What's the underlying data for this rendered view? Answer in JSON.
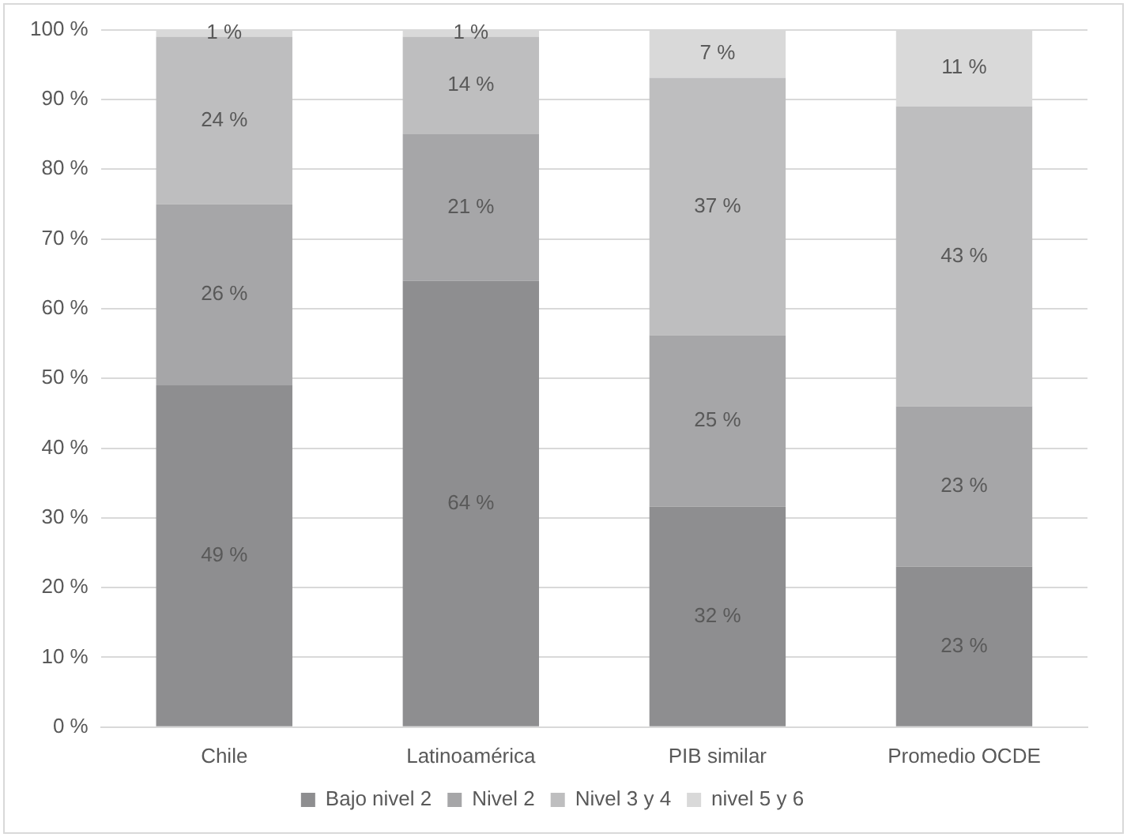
{
  "chart_data": {
    "type": "bar",
    "stacked": true,
    "categories": [
      "Chile",
      "Latinoamérica",
      "PIB similar",
      "Promedio OCDE"
    ],
    "series": [
      {
        "name": "Bajo nivel 2",
        "color": "#8e8e90",
        "values": [
          49,
          64,
          31.6,
          23
        ],
        "value_labels": [
          "49 %",
          "64 %",
          "32 %",
          "23 %"
        ]
      },
      {
        "name": "Nivel 2",
        "color": "#a6a6a8",
        "values": [
          26,
          21,
          24.6,
          23
        ],
        "value_labels": [
          "26 %",
          "21 %",
          "25 %",
          "23 %"
        ]
      },
      {
        "name": "Nivel 3 y 4",
        "color": "#bebebf",
        "values": [
          24,
          14,
          36.9,
          43
        ],
        "value_labels": [
          "24 %",
          "14 %",
          "37 %",
          "43 %"
        ]
      },
      {
        "name": "nivel 5 y 6",
        "color": "#d9d9d9",
        "values": [
          1,
          1,
          6.9,
          11
        ],
        "value_labels": [
          "1 %",
          "1 %",
          "7 %",
          "11 %"
        ]
      }
    ],
    "ylim": [
      0,
      100
    ],
    "yticks": [
      {
        "value": 0,
        "label": "0 %"
      },
      {
        "value": 10,
        "label": "10 %"
      },
      {
        "value": 20,
        "label": "20 %"
      },
      {
        "value": 30,
        "label": "30 %"
      },
      {
        "value": 40,
        "label": "40 %"
      },
      {
        "value": 50,
        "label": "50 %"
      },
      {
        "value": 60,
        "label": "60 %"
      },
      {
        "value": 70,
        "label": "70 %"
      },
      {
        "value": 80,
        "label": "80 %"
      },
      {
        "value": 90,
        "label": "90 %"
      },
      {
        "value": 100,
        "label": "100 %"
      }
    ],
    "grid": "y",
    "legend": "bottom"
  }
}
